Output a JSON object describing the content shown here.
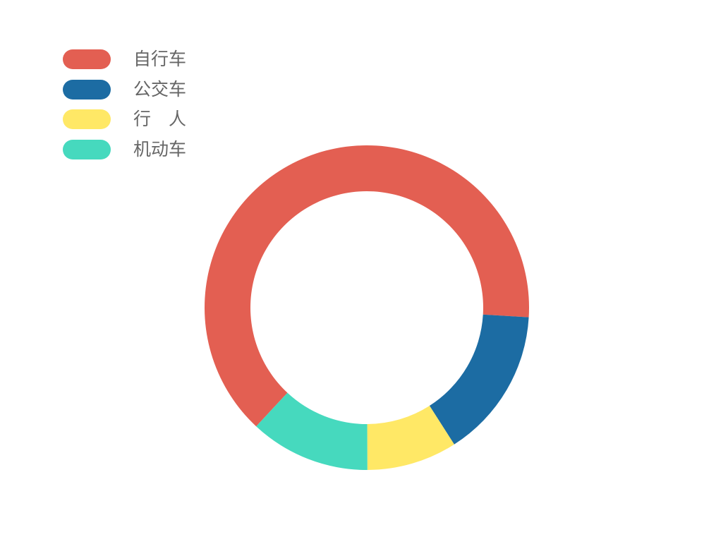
{
  "chart_data": {
    "type": "pie",
    "variant": "donut",
    "title": "",
    "legend_position": "top-left",
    "series": [
      {
        "name": "自行车",
        "value": 64,
        "color": "#e35f52"
      },
      {
        "name": "公交车",
        "value": 15,
        "color": "#1c6ca3"
      },
      {
        "name": "行　人",
        "value": 9,
        "color": "#ffe866"
      },
      {
        "name": "机动车",
        "value": 12,
        "color": "#46d9be"
      }
    ]
  }
}
